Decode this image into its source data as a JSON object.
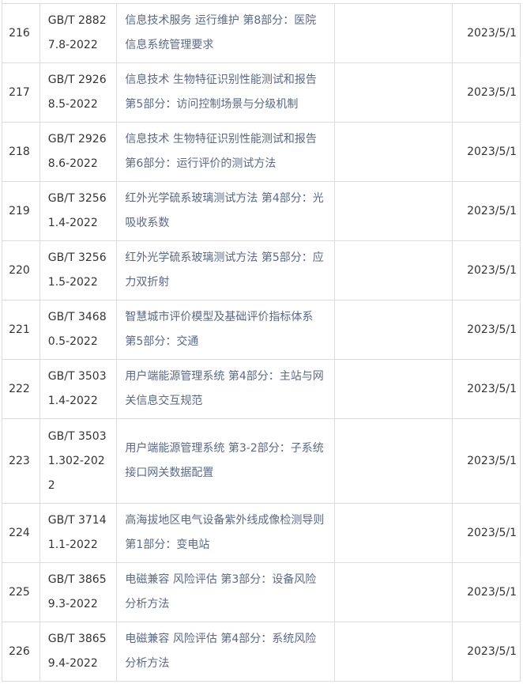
{
  "rows": [
    {
      "no": "216",
      "code": "GB/T 28827.8-2022",
      "name": "信息技术服务 运行维护 第8部分：医院信息系统管理要求",
      "date": "2023/5/1"
    },
    {
      "no": "217",
      "code": "GB/T 29268.5-2022",
      "name": "信息技术 生物特征识别性能测试和报告 第5部分：访问控制场景与分级机制",
      "date": "2023/5/1"
    },
    {
      "no": "218",
      "code": "GB/T 29268.6-2022",
      "name": "信息技术 生物特征识别性能测试和报告 第6部分：运行评价的测试方法",
      "date": "2023/5/1"
    },
    {
      "no": "219",
      "code": "GB/T 32561.4-2022",
      "name": "红外光学硫系玻璃测试方法 第4部分：光吸收系数",
      "date": "2023/5/1"
    },
    {
      "no": "220",
      "code": "GB/T 32561.5-2022",
      "name": "红外光学硫系玻璃测试方法 第5部分：应力双折射",
      "date": "2023/5/1"
    },
    {
      "no": "221",
      "code": "GB/T 34680.5-2022",
      "name": "智慧城市评价模型及基础评价指标体系 第5部分：交通",
      "date": "2023/5/1"
    },
    {
      "no": "222",
      "code": "GB/T 35031.4-2022",
      "name": "用户端能源管理系统 第4部分：主站与网关信息交互规范",
      "date": "2023/5/1"
    },
    {
      "no": "223",
      "code": "GB/T 35031.302-2022",
      "name": "用户端能源管理系统 第3-2部分：子系统接口网关数据配置",
      "date": "2023/5/1"
    },
    {
      "no": "224",
      "code": "GB/T 37141.1-2022",
      "name": "高海拔地区电气设备紫外线成像检测导则 第1部分：变电站",
      "date": "2023/5/1"
    },
    {
      "no": "225",
      "code": "GB/T 38659.3-2022",
      "name": "电磁兼容 风险评估 第3部分：设备风险分析方法",
      "date": "2023/5/1"
    },
    {
      "no": "226",
      "code": "GB/T 38659.4-2022",
      "name": "电磁兼容 风险评估 第4部分：系统风险分析方法",
      "date": "2023/5/1"
    }
  ]
}
